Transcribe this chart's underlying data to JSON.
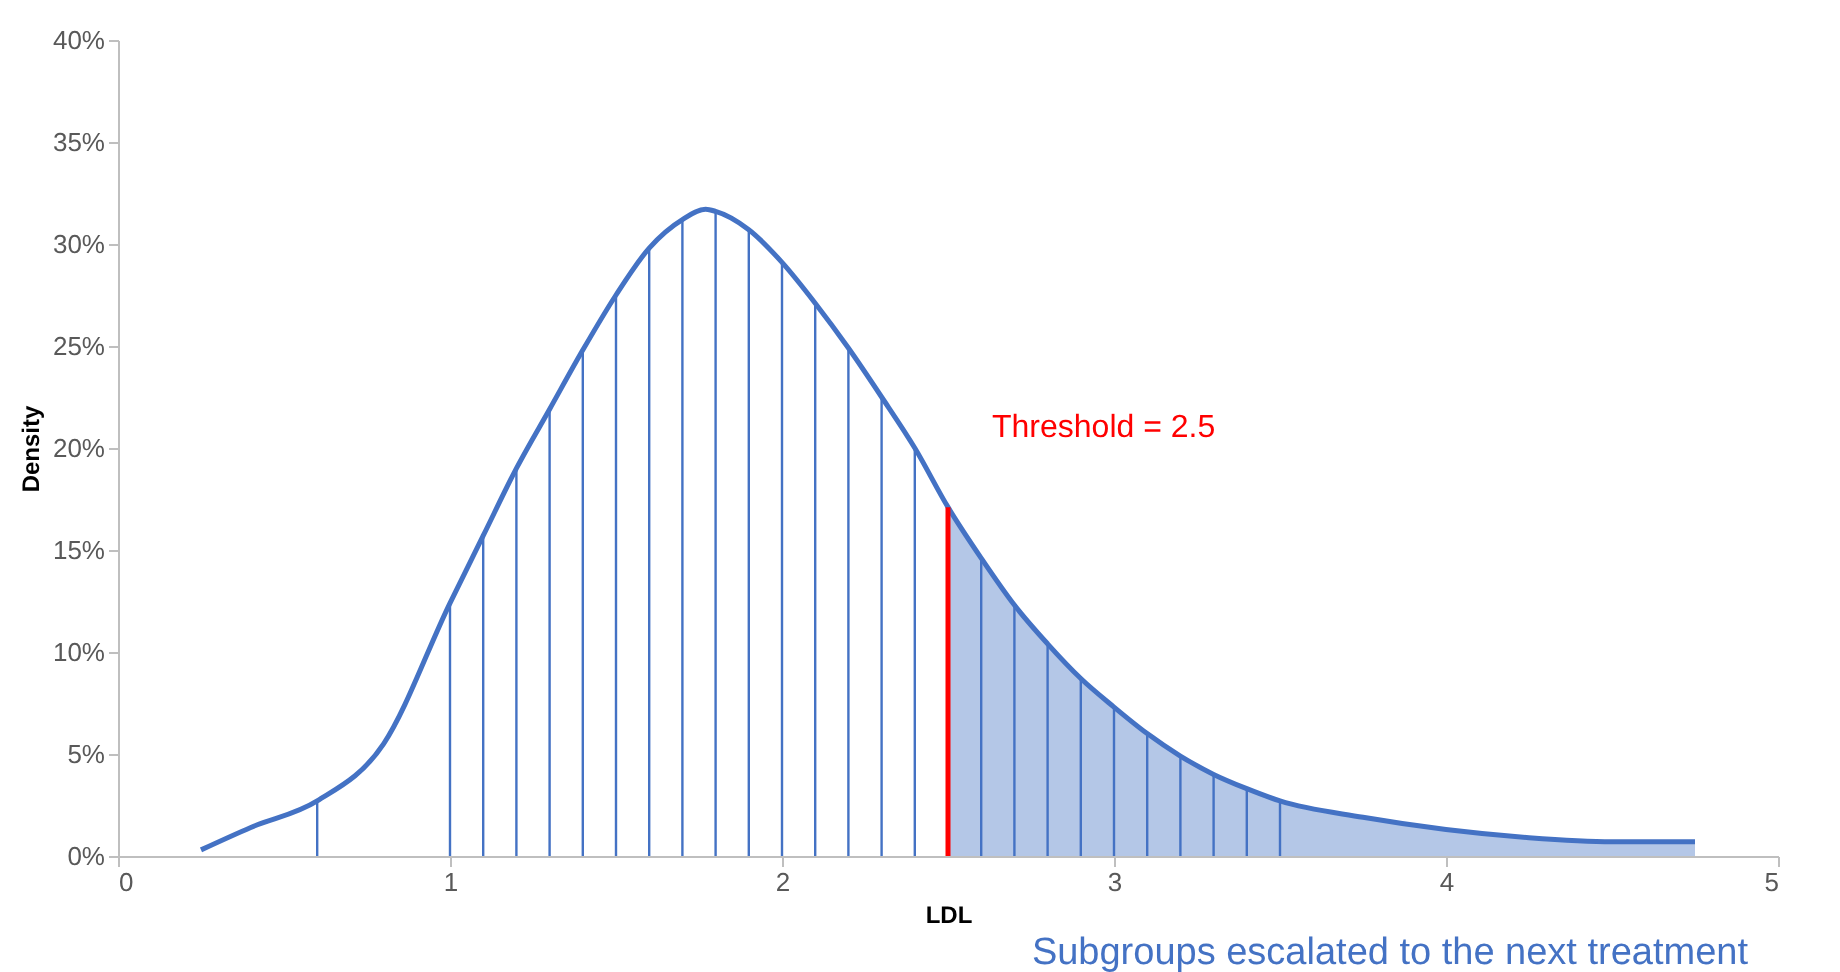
{
  "chart_data": {
    "type": "line",
    "xlabel": "LDL",
    "ylabel": "Density",
    "xlim": [
      0,
      5
    ],
    "xticks": [
      0,
      1,
      2,
      3,
      4,
      5
    ],
    "ylim": [
      0,
      40
    ],
    "yticks": [
      {
        "value": 0,
        "label": "0%"
      },
      {
        "value": 5,
        "label": "5%"
      },
      {
        "value": 10,
        "label": "10%"
      },
      {
        "value": 15,
        "label": "15%"
      },
      {
        "value": 20,
        "label": "20%"
      },
      {
        "value": 25,
        "label": "25%"
      },
      {
        "value": 30,
        "label": "30%"
      },
      {
        "value": 35,
        "label": "35%"
      },
      {
        "value": 40,
        "label": "40%"
      }
    ],
    "grid": false,
    "series": [
      {
        "type": "area",
        "color": "#b4c7e7",
        "x": [
          2.5,
          2.6,
          2.7,
          2.8,
          2.9,
          3.0,
          3.1,
          3.2,
          3.3,
          3.4,
          3.5,
          3.75,
          4.0,
          4.25,
          4.5,
          4.75
        ],
        "values": [
          17.1,
          14.6,
          12.3,
          10.4,
          8.7,
          7.3,
          6.0,
          4.9,
          4.0,
          3.3,
          2.7,
          1.9,
          1.3,
          0.9,
          0.7,
          0.7
        ]
      },
      {
        "type": "bar",
        "color": "#4472c4",
        "x": [
          0.6,
          1.0,
          1.1,
          1.2,
          1.3,
          1.4,
          1.5,
          1.6,
          1.7,
          1.8,
          1.9,
          2.0,
          2.1,
          2.2,
          2.3,
          2.4,
          2.6,
          2.7,
          2.8,
          2.9,
          3.0,
          3.1,
          3.2,
          3.3,
          3.4,
          3.5
        ],
        "values": [
          2.7,
          12.4,
          15.7,
          19.0,
          21.9,
          24.8,
          27.5,
          29.8,
          31.2,
          31.6,
          30.7,
          29.1,
          27.1,
          24.9,
          22.5,
          20.0,
          14.6,
          12.3,
          10.4,
          8.7,
          7.3,
          6.0,
          4.9,
          4.0,
          3.3,
          2.7
        ]
      },
      {
        "color": "#4472c4",
        "x": [
          0.25,
          0.4,
          0.6,
          0.8,
          1.0,
          1.1,
          1.2,
          1.3,
          1.4,
          1.5,
          1.6,
          1.7,
          1.77,
          1.8,
          1.9,
          2.0,
          2.1,
          2.2,
          2.3,
          2.4,
          2.5,
          2.6,
          2.7,
          2.8,
          2.9,
          3.0,
          3.1,
          3.2,
          3.3,
          3.4,
          3.5,
          3.75,
          4.0,
          4.25,
          4.5,
          4.75
        ],
        "values": [
          0.3,
          1.4,
          2.7,
          5.5,
          12.4,
          15.7,
          19.0,
          21.9,
          24.8,
          27.5,
          29.8,
          31.2,
          31.7,
          31.6,
          30.7,
          29.1,
          27.1,
          24.9,
          22.5,
          20.0,
          17.1,
          14.6,
          12.3,
          10.4,
          8.7,
          7.3,
          6.0,
          4.9,
          4.0,
          3.3,
          2.7,
          1.9,
          1.3,
          0.9,
          0.7,
          0.7
        ]
      },
      {
        "type": "line",
        "color": "#ff0000",
        "x": [
          2.5,
          2.5
        ],
        "values": [
          0,
          17.1
        ]
      }
    ],
    "annotations": [
      {
        "text": "Threshold = 2.5",
        "x": 2.5,
        "y": 17.1
      },
      "Subgroups escalated to the next treatment"
    ]
  }
}
